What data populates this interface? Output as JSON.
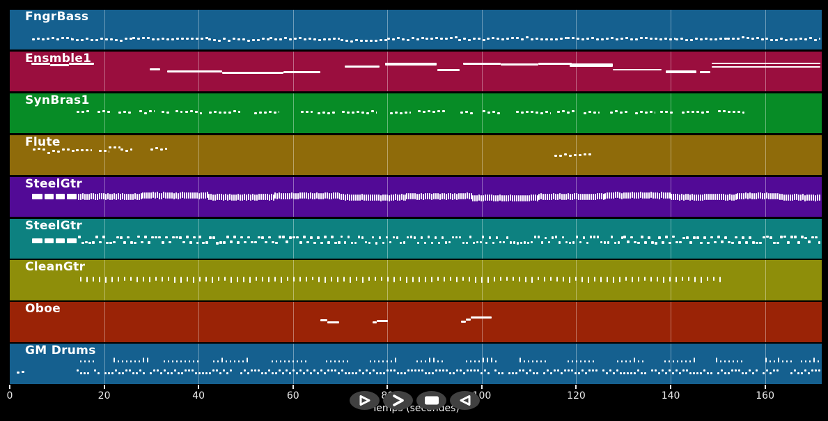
{
  "chart_data": {
    "type": "piano-roll",
    "title": "",
    "xlabel": "Temps (secondes)",
    "ylabel": "",
    "x_ticks": [
      0,
      20,
      40,
      60,
      80,
      100,
      120,
      140,
      160
    ],
    "x_max": 172,
    "grid": "vertical-at-ticks",
    "note_color": "#ffffff",
    "tracks": [
      {
        "name": "FngrBass",
        "color": "#15608f",
        "runs": [
          [
            "dashed",
            4.7,
            13,
            0.72,
            3
          ],
          [
            "dashed",
            13,
            26,
            0.745,
            3
          ],
          [
            "dashed",
            26,
            42,
            0.72,
            3
          ],
          [
            "dashed",
            42,
            55,
            0.75,
            3
          ],
          [
            "dashed",
            55,
            70,
            0.73,
            3
          ],
          [
            "dashed",
            70,
            80,
            0.765,
            3
          ],
          [
            "dashed",
            80,
            88,
            0.73,
            3
          ],
          [
            "dashed",
            88,
            95,
            0.7,
            3
          ],
          [
            "dashed",
            95,
            101,
            0.745,
            3
          ],
          [
            "dashed",
            101,
            118,
            0.72,
            3
          ],
          [
            "dashed",
            118,
            141,
            0.73,
            3
          ],
          [
            "dashed",
            141,
            152,
            0.745,
            3
          ],
          [
            "dashed",
            152,
            160,
            0.72,
            3
          ],
          [
            "dashed",
            160,
            172,
            0.735,
            3
          ]
        ]
      },
      {
        "name": "Ensmble1",
        "color": "#9a0e3e",
        "runs": [
          [
            "solid",
            4.6,
            8.5,
            0.3,
            3
          ],
          [
            "solid",
            8.5,
            12.5,
            0.34,
            3
          ],
          [
            "solid",
            12.5,
            17.9,
            0.31,
            3
          ],
          [
            "solid",
            29.7,
            31.9,
            0.44,
            3
          ],
          [
            "solid",
            33.4,
            45,
            0.5,
            3
          ],
          [
            "solid",
            45,
            58,
            0.54,
            3
          ],
          [
            "solid",
            58,
            65.8,
            0.52,
            3
          ],
          [
            "solid",
            71,
            78.4,
            0.37,
            3
          ],
          [
            "solid",
            79.5,
            90.5,
            0.32,
            4
          ],
          [
            "solid",
            90.6,
            95.3,
            0.47,
            3
          ],
          [
            "solid",
            96,
            104,
            0.3,
            3
          ],
          [
            "solid",
            104,
            112,
            0.33,
            3
          ],
          [
            "solid",
            112,
            119,
            0.3,
            3
          ],
          [
            "solid",
            118.6,
            127.8,
            0.35,
            5
          ],
          [
            "solid",
            127.8,
            138.1,
            0.46,
            2
          ],
          [
            "solid",
            138.9,
            145.5,
            0.51,
            4
          ],
          [
            "solid",
            146.2,
            148.4,
            0.51,
            3
          ],
          [
            "solid",
            148.7,
            172,
            0.3,
            2
          ],
          [
            "solid",
            148.7,
            172,
            0.39,
            2
          ]
        ]
      },
      {
        "name": "SynBras1",
        "color": "#078c26",
        "runs": [
          [
            "dashed",
            14.2,
            17.1,
            0.48,
            3
          ],
          [
            "dashed",
            18.6,
            21.5,
            0.46,
            3
          ],
          [
            "dashed",
            23,
            26,
            0.48,
            3
          ],
          [
            "dashed",
            27.5,
            30.7,
            0.47,
            3
          ],
          [
            "dashed",
            32.2,
            34.2,
            0.48,
            3
          ],
          [
            "dashed",
            35.1,
            36.6,
            0.46,
            3
          ],
          [
            "dashed",
            37.2,
            40.7,
            0.48,
            3
          ],
          [
            "dashed",
            42.2,
            48.9,
            0.47,
            3
          ],
          [
            "dashed",
            51.8,
            57,
            0.48,
            3
          ],
          [
            "dashed",
            61.7,
            64.1,
            0.46,
            3
          ],
          [
            "dashed",
            65.2,
            69.1,
            0.48,
            3
          ],
          [
            "dashed",
            70.3,
            77.6,
            0.47,
            3
          ],
          [
            "dashed",
            80.6,
            85,
            0.48,
            3
          ],
          [
            "dashed",
            86.5,
            92.4,
            0.46,
            3
          ],
          [
            "dashed",
            95.4,
            98.3,
            0.48,
            3
          ],
          [
            "dashed",
            100.1,
            103.9,
            0.47,
            3
          ],
          [
            "dashed",
            107.2,
            114.5,
            0.48,
            3
          ],
          [
            "dashed",
            116,
            120.1,
            0.46,
            3
          ],
          [
            "dashed",
            121.6,
            124.9,
            0.48,
            3
          ],
          [
            "dashed",
            127.1,
            130.8,
            0.47,
            3
          ],
          [
            "dashed",
            132.5,
            136.7,
            0.48,
            3
          ],
          [
            "dashed",
            137.7,
            140.7,
            0.46,
            3
          ],
          [
            "dashed",
            142.3,
            148.2,
            0.48,
            3
          ],
          [
            "dashed",
            150,
            155.6,
            0.47,
            3
          ]
        ]
      },
      {
        "name": "Flute",
        "color": "#8f6b0a",
        "runs": [
          [
            "dashed",
            4.9,
            8,
            0.36,
            3
          ],
          [
            "dashed",
            8,
            11,
            0.42,
            3
          ],
          [
            "dashed",
            11,
            14,
            0.38,
            3
          ],
          [
            "dashed",
            14,
            17.4,
            0.4,
            3
          ],
          [
            "dashed",
            18.9,
            21,
            0.4,
            3
          ],
          [
            "dashed",
            21,
            23.5,
            0.32,
            3
          ],
          [
            "dashed",
            23.5,
            26,
            0.38,
            3
          ],
          [
            "dashed",
            29.8,
            33.4,
            0.35,
            3
          ],
          [
            "dashed",
            115.3,
            123.4,
            0.5,
            3
          ]
        ]
      },
      {
        "name": "SteelGtr",
        "color": "#520a96",
        "runs": [
          [
            "solid",
            4.7,
            6.9,
            0.5,
            8
          ],
          [
            "solid",
            7.3,
            9.3,
            0.5,
            8
          ],
          [
            "solid",
            9.7,
            11.7,
            0.5,
            8
          ],
          [
            "solid",
            12.1,
            14.1,
            0.5,
            8
          ],
          [
            "striped",
            14.5,
            28,
            0.5,
            9
          ],
          [
            "striped",
            28,
            42,
            0.47,
            9
          ],
          [
            "striped",
            42,
            56,
            0.51,
            9
          ],
          [
            "striped",
            56,
            70,
            0.48,
            9
          ],
          [
            "striped",
            70,
            84,
            0.52,
            9
          ],
          [
            "striped",
            84,
            98,
            0.49,
            9
          ],
          [
            "striped",
            98,
            112,
            0.53,
            9
          ],
          [
            "striped",
            112,
            126,
            0.5,
            9
          ],
          [
            "striped",
            126,
            140,
            0.47,
            9
          ],
          [
            "striped",
            140,
            154,
            0.51,
            9
          ],
          [
            "striped",
            154,
            163,
            0.48,
            9
          ],
          [
            "striped",
            163,
            172,
            0.52,
            9
          ]
        ]
      },
      {
        "name": "SteelGtr",
        "color": "#0d8180",
        "runs": [
          [
            "solid",
            4.7,
            6.9,
            0.56,
            7
          ],
          [
            "solid",
            7.3,
            9.3,
            0.56,
            7
          ],
          [
            "solid",
            9.7,
            11.7,
            0.56,
            7
          ],
          [
            "solid",
            12.1,
            14.1,
            0.56,
            7
          ],
          [
            "zigzag",
            14.5,
            40,
            0.47,
            3.5
          ],
          [
            "zigzag",
            40,
            70,
            0.47,
            3.5
          ],
          [
            "zigzag",
            70,
            100,
            0.47,
            3.5
          ],
          [
            "zigzag",
            100,
            130,
            0.47,
            3.5
          ],
          [
            "zigzag",
            130,
            172,
            0.47,
            3.5
          ]
        ]
      },
      {
        "name": "CleanGtr",
        "color": "#8e8e0a",
        "runs": [
          [
            "vticks",
            14.9,
            150.7,
            0.42,
            8
          ]
        ]
      },
      {
        "name": "Oboe",
        "color": "#9a2306",
        "runs": [
          [
            "solid",
            65.8,
            67.3,
            0.46,
            3
          ],
          [
            "solid",
            67.3,
            69.8,
            0.51,
            3
          ],
          [
            "solid",
            76.9,
            77.8,
            0.51,
            3
          ],
          [
            "solid",
            77.8,
            80.1,
            0.47,
            3
          ],
          [
            "solid",
            95.6,
            96.6,
            0.49,
            3
          ],
          [
            "solid",
            96.6,
            97.7,
            0.44,
            3
          ],
          [
            "solid",
            97.7,
            102.1,
            0.39,
            3
          ]
        ]
      },
      {
        "name": "GM Drums",
        "color": "#15608f",
        "runs": [
          [
            "dashed",
            1.5,
            3.2,
            0.7,
            3
          ],
          [
            "dots",
            14.9,
            17.9,
            0.42,
            3
          ],
          [
            "dots",
            22,
            29.2,
            0.42,
            3
          ],
          [
            "dots",
            32.6,
            39.7,
            0.42,
            3
          ],
          [
            "dots",
            43,
            50.3,
            0.42,
            3
          ],
          [
            "dots",
            55.5,
            62.9,
            0.42,
            3
          ],
          [
            "dots",
            66.9,
            71.7,
            0.42,
            3
          ],
          [
            "dots",
            76.2,
            82.2,
            0.42,
            3
          ],
          [
            "dots",
            86.2,
            92.2,
            0.42,
            3
          ],
          [
            "dots",
            96.6,
            103,
            0.42,
            3
          ],
          [
            "dots",
            108,
            114,
            0.42,
            3
          ],
          [
            "dots",
            118.2,
            124.2,
            0.42,
            3
          ],
          [
            "dots",
            128.6,
            134.6,
            0.42,
            3
          ],
          [
            "dots",
            138.6,
            145.6,
            0.42,
            3
          ],
          [
            "dots",
            149.6,
            155.6,
            0.42,
            3
          ],
          [
            "dots",
            160,
            166,
            0.42,
            3
          ],
          [
            "dots",
            167.6,
            171.6,
            0.42,
            3
          ],
          [
            "drumrow",
            14.2,
            172,
            0.64,
            4
          ]
        ]
      }
    ]
  },
  "transport": {
    "buttons": [
      "play-icon",
      "fast-forward-icon",
      "stop-icon",
      "rewind-icon"
    ]
  }
}
